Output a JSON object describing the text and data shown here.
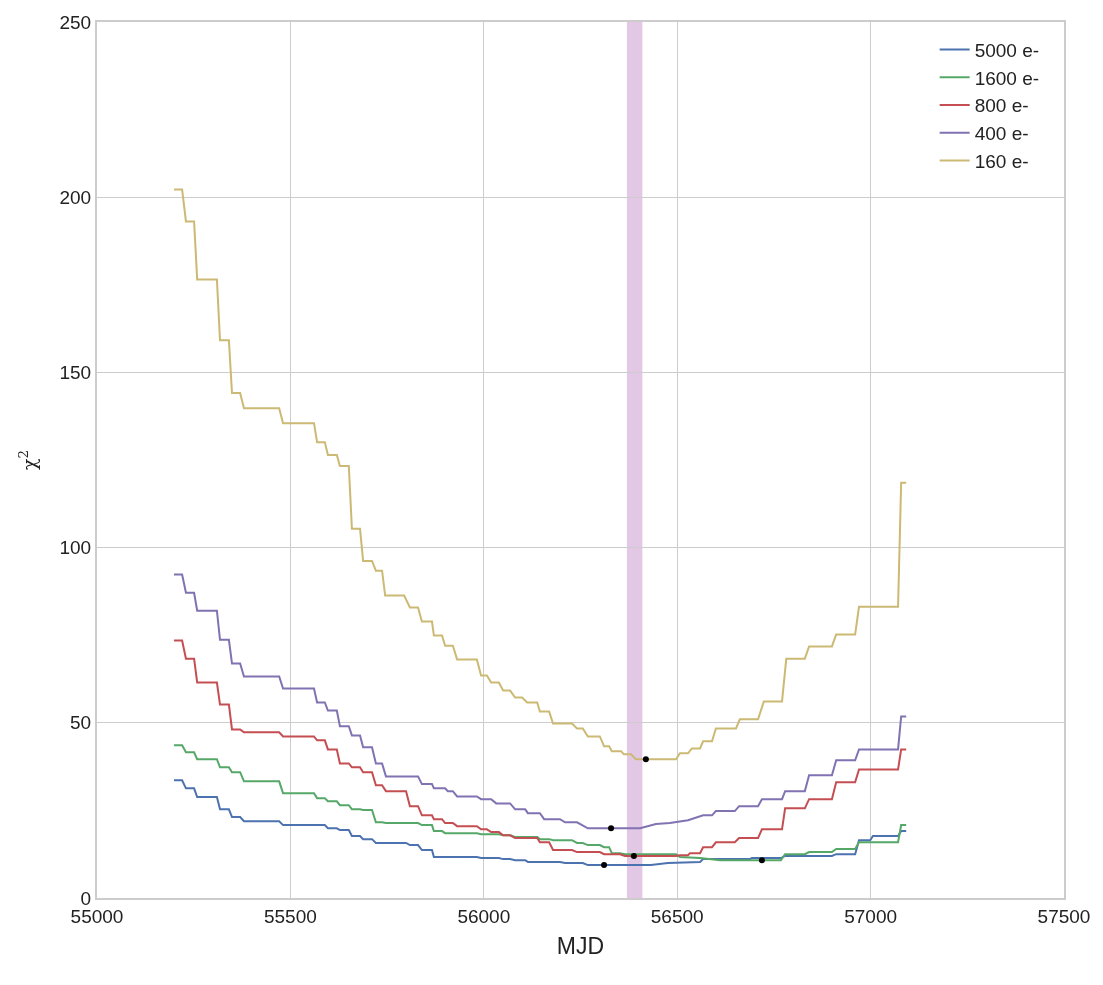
{
  "chart_data": {
    "type": "line",
    "xlabel": "MJD",
    "ylabel": "χ$^{2}$",
    "xlim": [
      55000,
      57500
    ],
    "xticks": [
      55000,
      55500,
      56000,
      56500,
      57000,
      57500
    ],
    "ylim": [
      0,
      250
    ],
    "yticks": [
      0,
      50,
      100,
      150,
      200,
      250
    ],
    "grid": true,
    "legend": "top right",
    "line_style": "solid",
    "marker": "none",
    "bands": [
      {
        "axis": "x",
        "from": 56370,
        "to": 56410,
        "color": "#e2c8e4"
      }
    ],
    "series": [
      {
        "name": "5000 e-",
        "color": "#4c72b0",
        "x": [
          55199,
          55220,
          55230,
          55251,
          55259,
          55310,
          55318,
          55341,
          55349,
          55370,
          55380,
          55471,
          55481,
          55589,
          55597,
          55620,
          55628,
          55651,
          55659,
          55680,
          55688,
          55711,
          55721,
          55799,
          55809,
          55830,
          55840,
          55866,
          55871,
          55982,
          55993,
          56039,
          56050,
          56068,
          56081,
          56107,
          56114,
          56197,
          56210,
          56256,
          56269,
          56432,
          56476,
          56559,
          56567,
          56688,
          56693,
          56768,
          56779,
          56900,
          56911,
          56960,
          56970,
          56999,
          57006,
          57071,
          57079,
          57092
        ],
        "values": [
          33.6,
          33.6,
          31.3,
          31.3,
          28.8,
          28.8,
          25.3,
          25.3,
          23.1,
          23.1,
          21.9,
          21.9,
          20.8,
          20.8,
          19.9,
          19.9,
          19.4,
          19.4,
          17.7,
          17.7,
          16.8,
          16.8,
          15.7,
          15.7,
          15.1,
          15.1,
          13.7,
          13.7,
          11.7,
          11.7,
          11.4,
          11.4,
          11.1,
          11.1,
          10.8,
          10.8,
          10.3,
          10.3,
          10.0,
          10.0,
          9.4,
          9.4,
          10.0,
          10.3,
          11.1,
          11.1,
          11.4,
          11.4,
          12.0,
          12.0,
          12.5,
          12.5,
          16.5,
          16.5,
          17.7,
          17.7,
          19.1,
          19.1
        ]
      },
      {
        "name": "1600 e-",
        "color": "#55a868",
        "x": [
          55199,
          55220,
          55230,
          55251,
          55259,
          55310,
          55318,
          55341,
          55349,
          55370,
          55380,
          55471,
          55481,
          55561,
          55569,
          55589,
          55597,
          55620,
          55628,
          55651,
          55659,
          55680,
          55688,
          55711,
          55721,
          55737,
          55747,
          55830,
          55840,
          55866,
          55871,
          55892,
          55900,
          55982,
          55993,
          56039,
          56050,
          56068,
          56081,
          56138,
          56145,
          56169,
          56179,
          56228,
          56241,
          56256,
          56269,
          56300,
          56311,
          56324,
          56331,
          56352,
          56365,
          56497,
          56507,
          56559,
          56611,
          56768,
          56779,
          56830,
          56841,
          56900,
          56911,
          56960,
          56970,
          57071,
          57079,
          57092
        ],
        "values": [
          43.6,
          43.6,
          41.6,
          41.6,
          39.6,
          39.6,
          37.3,
          37.3,
          35.9,
          35.9,
          33.3,
          33.3,
          29.9,
          29.9,
          28.5,
          28.5,
          27.6,
          27.6,
          26.5,
          26.5,
          25.3,
          25.3,
          25.1,
          25.1,
          21.6,
          21.6,
          21.4,
          21.4,
          20.8,
          20.8,
          19.1,
          19.1,
          18.5,
          18.5,
          18.2,
          18.2,
          17.9,
          17.9,
          17.4,
          17.4,
          16.8,
          16.8,
          16.5,
          16.5,
          15.7,
          15.7,
          15.1,
          15.1,
          14.5,
          14.5,
          12.8,
          12.8,
          12.5,
          12.5,
          11.7,
          11.4,
          10.8,
          10.8,
          12.5,
          12.5,
          13.1,
          13.1,
          14.0,
          14.0,
          15.9,
          15.9,
          20.8,
          20.8
        ]
      },
      {
        "name": "800 e-",
        "color": "#c44e52",
        "x": [
          55199,
          55220,
          55230,
          55251,
          55259,
          55310,
          55318,
          55341,
          55349,
          55370,
          55380,
          55471,
          55481,
          55561,
          55569,
          55589,
          55597,
          55620,
          55628,
          55651,
          55659,
          55680,
          55688,
          55711,
          55721,
          55737,
          55747,
          55799,
          55809,
          55830,
          55840,
          55866,
          55871,
          55892,
          55900,
          55920,
          55931,
          55982,
          55993,
          56008,
          56019,
          56039,
          56050,
          56068,
          56081,
          56138,
          56145,
          56169,
          56179,
          56228,
          56241,
          56300,
          56311,
          56352,
          56365,
          56497,
          56507,
          56528,
          56533,
          56559,
          56567,
          56590,
          56600,
          56649,
          56660,
          56709,
          56719,
          56771,
          56779,
          56830,
          56841,
          56900,
          56911,
          56960,
          56970,
          57071,
          57079,
          57092
        ],
        "values": [
          73.5,
          73.5,
          68.3,
          68.3,
          61.5,
          61.5,
          55.2,
          55.2,
          48.1,
          48.1,
          47.3,
          47.3,
          46.1,
          46.1,
          45.0,
          45.0,
          42.4,
          42.4,
          38.4,
          38.4,
          37.3,
          37.3,
          35.9,
          35.9,
          32.2,
          32.2,
          30.5,
          30.5,
          26.2,
          26.2,
          23.6,
          23.6,
          22.5,
          22.5,
          21.4,
          21.4,
          20.5,
          20.5,
          19.6,
          19.6,
          18.8,
          18.8,
          17.9,
          17.9,
          17.1,
          17.1,
          15.9,
          15.9,
          13.7,
          13.7,
          13.1,
          13.1,
          12.5,
          12.5,
          12.0,
          12.0,
          12.2,
          12.2,
          12.8,
          12.8,
          14.5,
          14.5,
          15.9,
          15.9,
          17.1,
          17.1,
          19.6,
          19.6,
          25.6,
          25.6,
          28.2,
          28.2,
          33.0,
          33.0,
          36.7,
          36.7,
          42.4,
          42.4
        ]
      },
      {
        "name": "400 e-",
        "color": "#8172b2",
        "x": [
          55199,
          55220,
          55230,
          55251,
          55259,
          55310,
          55318,
          55341,
          55349,
          55370,
          55380,
          55471,
          55481,
          55561,
          55569,
          55589,
          55597,
          55620,
          55628,
          55651,
          55659,
          55680,
          55688,
          55711,
          55721,
          55737,
          55747,
          55830,
          55840,
          55866,
          55871,
          55900,
          55907,
          55920,
          55931,
          55982,
          55993,
          56019,
          56032,
          56068,
          56081,
          56107,
          56114,
          56145,
          56156,
          56197,
          56210,
          56241,
          56269,
          56404,
          56445,
          56481,
          56528,
          56567,
          56590,
          56600,
          56649,
          56660,
          56709,
          56719,
          56771,
          56779,
          56830,
          56841,
          56900,
          56911,
          56960,
          56970,
          57071,
          57079,
          57092
        ],
        "values": [
          92.3,
          92.3,
          87.1,
          87.1,
          82.0,
          82.0,
          73.7,
          73.7,
          66.9,
          66.9,
          63.2,
          63.2,
          59.8,
          59.8,
          55.8,
          55.8,
          53.5,
          53.5,
          49.0,
          49.0,
          46.4,
          46.4,
          43.0,
          43.0,
          38.4,
          38.4,
          34.7,
          34.7,
          32.5,
          32.5,
          31.3,
          31.3,
          30.5,
          30.5,
          29.0,
          29.0,
          28.2,
          28.2,
          27.0,
          27.0,
          25.3,
          25.3,
          24.2,
          24.2,
          22.5,
          22.5,
          21.6,
          21.6,
          19.9,
          19.9,
          21.1,
          21.4,
          22.2,
          23.6,
          23.6,
          24.8,
          24.8,
          26.2,
          26.2,
          28.2,
          28.2,
          30.5,
          30.5,
          35.0,
          35.0,
          39.3,
          39.3,
          42.4,
          42.4,
          51.8,
          51.8
        ]
      },
      {
        "name": "160 e-",
        "color": "#ccb974",
        "x": [
          55199,
          55220,
          55230,
          55251,
          55259,
          55310,
          55318,
          55341,
          55349,
          55370,
          55380,
          55471,
          55481,
          55561,
          55569,
          55589,
          55597,
          55620,
          55628,
          55651,
          55659,
          55680,
          55688,
          55711,
          55721,
          55737,
          55745,
          55794,
          55809,
          55830,
          55840,
          55866,
          55871,
          55892,
          55900,
          55920,
          55931,
          55982,
          55993,
          56008,
          56019,
          56039,
          56050,
          56068,
          56081,
          56099,
          56112,
          56138,
          56145,
          56169,
          56179,
          56228,
          56241,
          56256,
          56269,
          56300,
          56311,
          56324,
          56331,
          56355,
          56362,
          56381,
          56393,
          56497,
          56507,
          56528,
          56538,
          56559,
          56567,
          56590,
          56600,
          56652,
          56662,
          56709,
          56724,
          56771,
          56782,
          56830,
          56841,
          56900,
          56911,
          56960,
          56970,
          57071,
          57079,
          57092
        ],
        "values": [
          202.2,
          202.2,
          193.1,
          193.1,
          176.5,
          176.5,
          159.2,
          159.2,
          144.1,
          144.1,
          139.8,
          139.8,
          135.5,
          135.5,
          130.1,
          130.1,
          126.4,
          126.4,
          123.3,
          123.3,
          105.4,
          105.4,
          96.2,
          96.2,
          93.4,
          93.4,
          86.3,
          86.3,
          82.9,
          82.9,
          78.9,
          78.9,
          74.9,
          74.9,
          72.0,
          72.0,
          68.1,
          68.1,
          63.5,
          63.5,
          61.5,
          61.5,
          59.2,
          59.2,
          57.2,
          57.2,
          55.8,
          55.8,
          53.2,
          53.2,
          49.8,
          49.8,
          48.4,
          48.4,
          46.1,
          46.1,
          43.3,
          43.3,
          41.9,
          41.9,
          41.0,
          41.0,
          39.6,
          39.6,
          41.3,
          41.3,
          42.7,
          42.7,
          44.7,
          44.7,
          48.4,
          48.4,
          51.0,
          51.0,
          56.1,
          56.1,
          68.3,
          68.3,
          71.8,
          71.8,
          75.2,
          75.2,
          83.1,
          83.1,
          118.5,
          118.5
        ]
      },
      {
        "type": "scatter",
        "color": "#000000",
        "marker": "circle",
        "x": [
          56311,
          56329,
          56388,
          56419,
          56719
        ],
        "values": [
          9.4,
          19.9,
          12.0,
          39.6,
          10.8
        ]
      }
    ]
  }
}
